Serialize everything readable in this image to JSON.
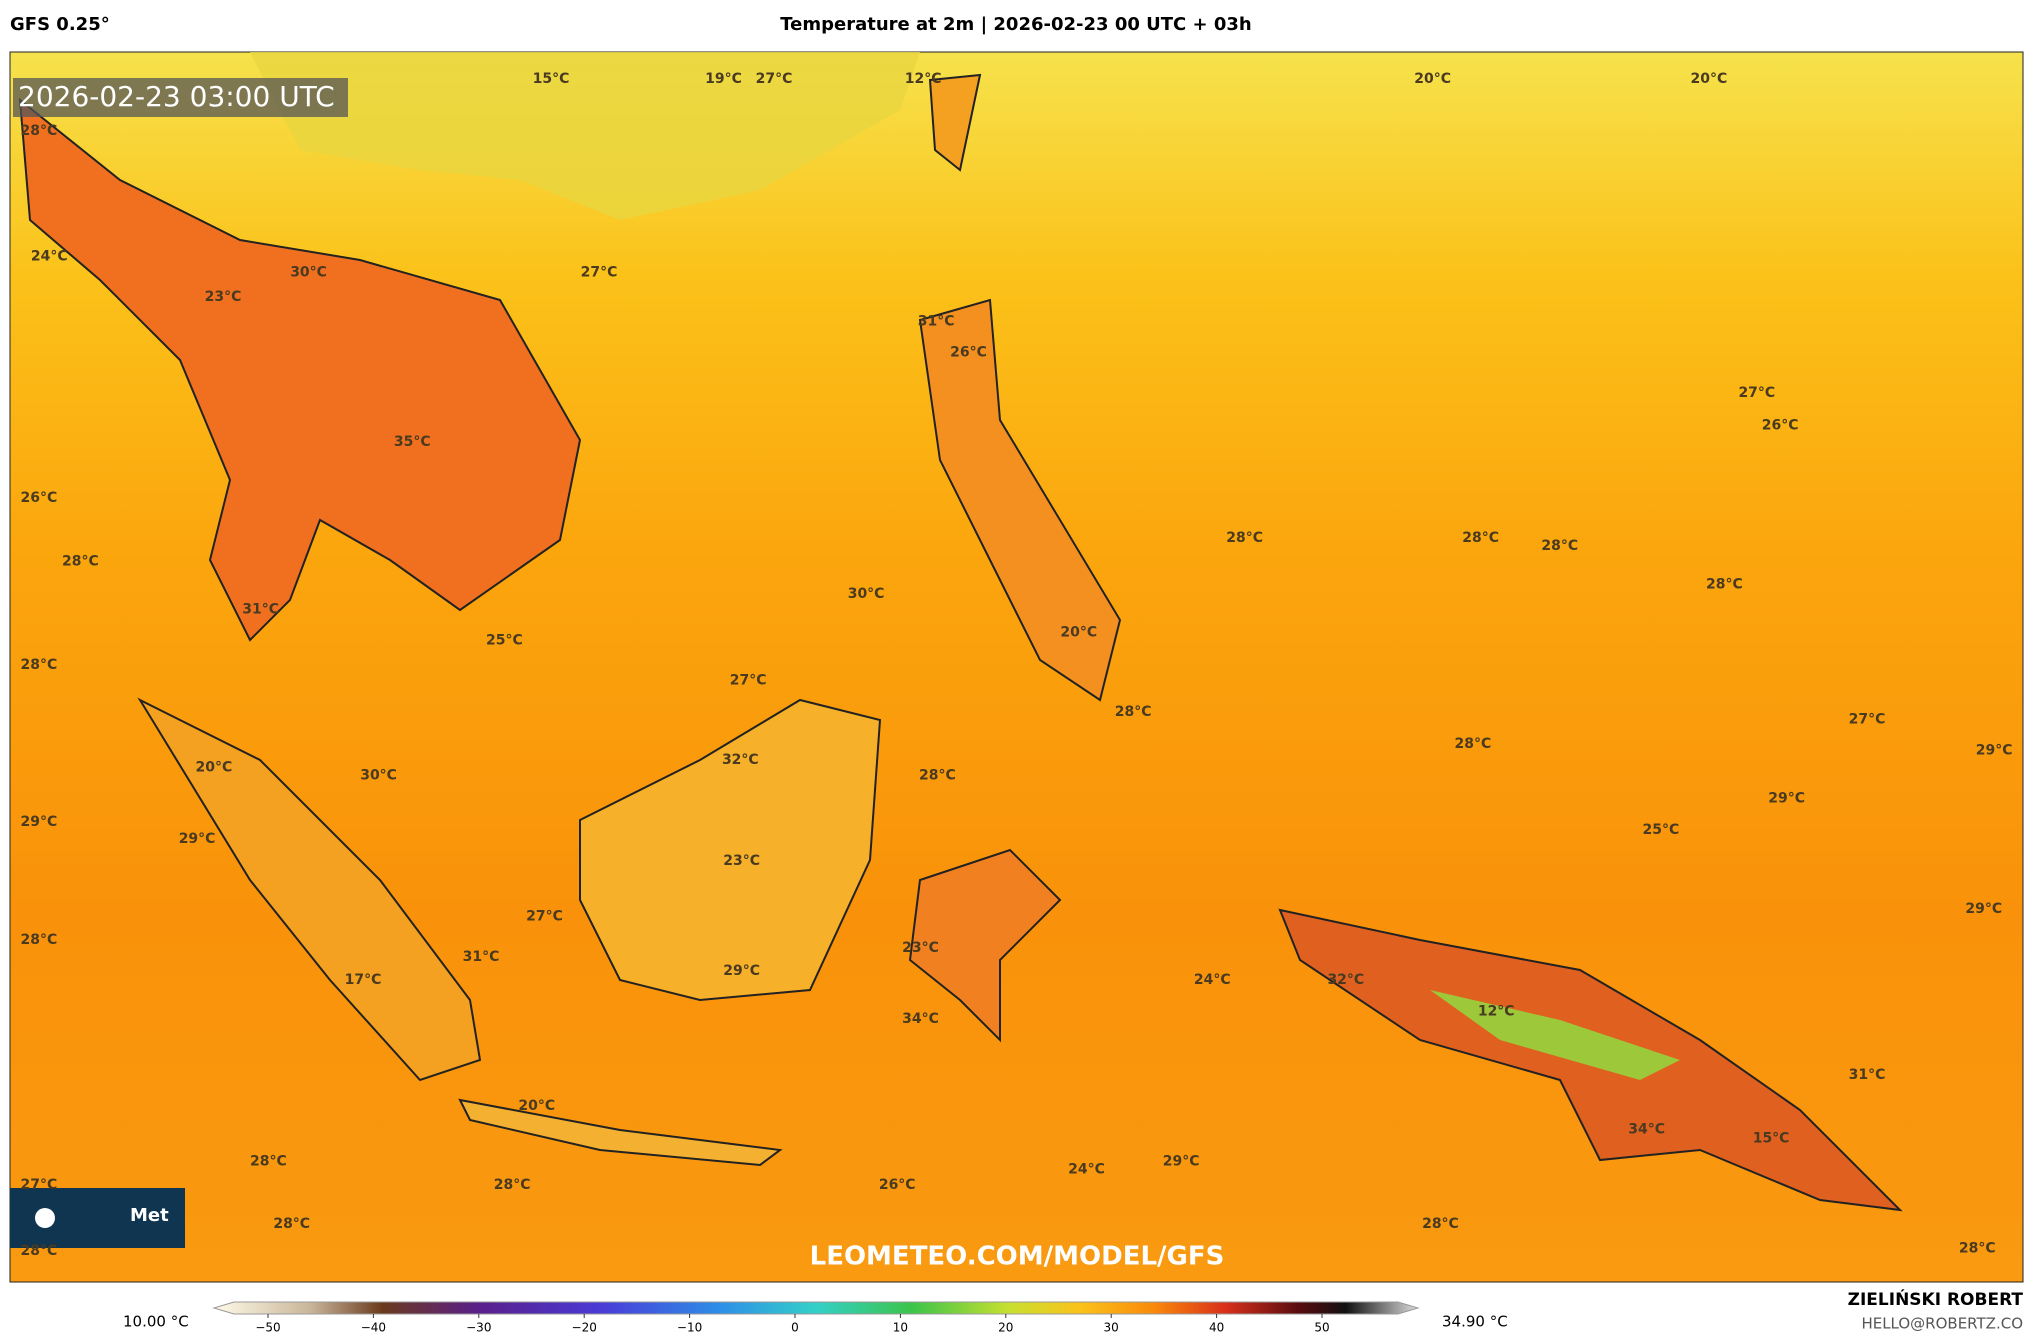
{
  "header": {
    "model": "GFS 0.25°",
    "title": "Temperature at 2m | 2026-02-23 00 UTC + 03h"
  },
  "map": {
    "timestamp": "2026-02-23 03:00 UTC",
    "watermark": "LEOMETEO.COM/MODEL/GFS",
    "logo": "Met",
    "labels": [
      "15°C",
      "19°C",
      "27°C",
      "12°C",
      "20°C",
      "20°C",
      "28°C",
      "24°C",
      "30°C",
      "23°C",
      "27°C",
      "31°C",
      "26°C",
      "27°C",
      "26°C",
      "35°C",
      "26°C",
      "28°C",
      "28°C",
      "28°C",
      "28°C",
      "28°C",
      "30°C",
      "31°C",
      "25°C",
      "28°C",
      "20°C",
      "27°C",
      "28°C",
      "27°C",
      "28°C",
      "32°C",
      "20°C",
      "28°C",
      "29°C",
      "30°C",
      "29°C",
      "29°C",
      "29°C",
      "25°C",
      "23°C",
      "29°C",
      "28°C",
      "27°C",
      "23°C",
      "31°C",
      "29°C",
      "24°C",
      "32°C",
      "17°C",
      "12°C",
      "34°C",
      "31°C",
      "20°C",
      "15°C",
      "34°C",
      "28°C",
      "24°C",
      "29°C",
      "27°C",
      "28°C",
      "26°C",
      "28°C",
      "28°C",
      "28°C",
      "28°C"
    ]
  },
  "colorbar": {
    "min_label": "10.00 °C",
    "max_label": "34.90 °C",
    "ticks": [
      {
        "value": -50,
        "label": "−50"
      },
      {
        "value": -40,
        "label": "−40"
      },
      {
        "value": -30,
        "label": "−30"
      },
      {
        "value": -20,
        "label": "−20"
      },
      {
        "value": -10,
        "label": "−10"
      },
      0,
      10,
      20,
      30,
      40,
      50
    ]
  },
  "footer": {
    "author": "ZIELIŃSKI ROBERT",
    "email": "HELLO@ROBERTZ.CO"
  }
}
